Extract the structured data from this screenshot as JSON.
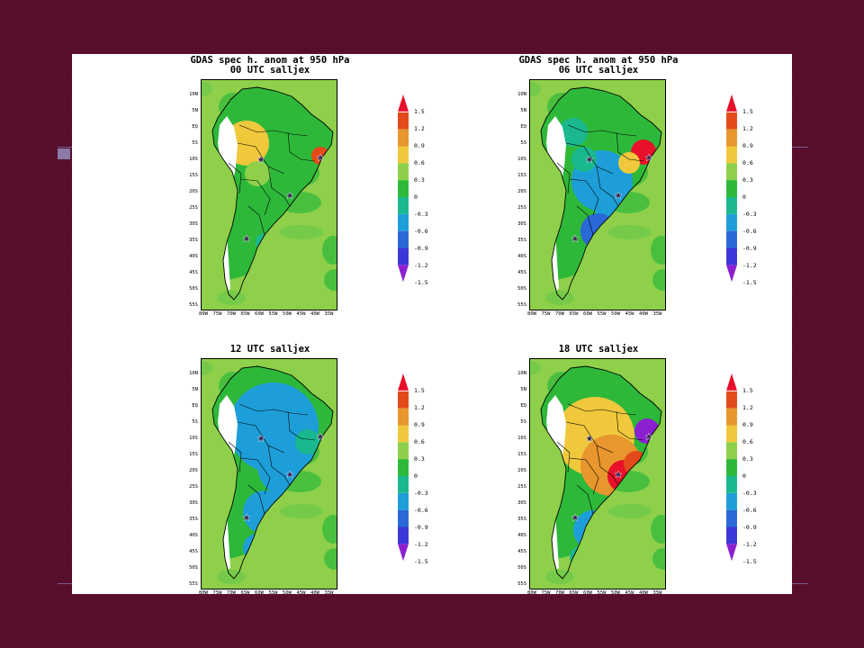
{
  "figure": {
    "panels": [
      {
        "id": "p00",
        "title_lines": [
          "GDAS spec h. anom at 950 hPa",
          "00 UTC salljex"
        ],
        "regime": "moist_north",
        "lat_labels": [
          "10N",
          "5N",
          "EQ",
          "5S",
          "10S",
          "15S",
          "20S",
          "25S",
          "30S",
          "35S",
          "40S",
          "45S",
          "50S",
          "55S"
        ],
        "lon_labels": [
          "80W",
          "75W",
          "70W",
          "65W",
          "60W",
          "55W",
          "50W",
          "45W",
          "40W",
          "35W"
        ]
      },
      {
        "id": "p06",
        "title_lines": [
          "GDAS spec h. anom at 950 hPa",
          "06 UTC salljex"
        ],
        "regime": "dry_central",
        "lat_labels": [
          "10N",
          "5N",
          "EQ",
          "5S",
          "10S",
          "15S",
          "20S",
          "25S",
          "30S",
          "35S",
          "40S",
          "45S",
          "50S",
          "55S"
        ],
        "lon_labels": [
          "80W",
          "75W",
          "70W",
          "65W",
          "60W",
          "55W",
          "50W",
          "45W",
          "40W",
          "35W"
        ]
      },
      {
        "id": "p12",
        "title_lines": [
          "",
          "12 UTC salljex"
        ],
        "regime": "dry_wide",
        "lat_labels": [
          "10N",
          "5N",
          "EQ",
          "5S",
          "10S",
          "15S",
          "20S",
          "25S",
          "30S",
          "35S",
          "40S",
          "45S",
          "50S",
          "55S"
        ],
        "lon_labels": [
          "80W",
          "75W",
          "70W",
          "65W",
          "60W",
          "55W",
          "50W",
          "45W",
          "40W",
          "35W"
        ]
      },
      {
        "id": "p18",
        "title_lines": [
          "",
          "18 UTC salljex"
        ],
        "regime": "moist_central",
        "lat_labels": [
          "10N",
          "5N",
          "EQ",
          "5S",
          "10S",
          "15S",
          "20S",
          "25S",
          "30S",
          "35S",
          "40S",
          "45S",
          "50S",
          "55S"
        ],
        "lon_labels": [
          "80W",
          "75W",
          "70W",
          "65W",
          "60W",
          "55W",
          "50W",
          "45W",
          "40W",
          "35W"
        ]
      }
    ],
    "colorbar": {
      "labels": [
        "1.5",
        "1.2",
        "0.9",
        "0.6",
        "0.3",
        "0",
        "-0.3",
        "-0.6",
        "-0.9",
        "-1.2",
        "-1.5"
      ],
      "colors": [
        "#e8102a",
        "#e34a1a",
        "#e8962e",
        "#f0c83c",
        "#8ed04a",
        "#2eb83a",
        "#1ab88e",
        "#1e9ed8",
        "#2a68d8",
        "#3a36d8",
        "#8c20d0"
      ]
    }
  }
}
